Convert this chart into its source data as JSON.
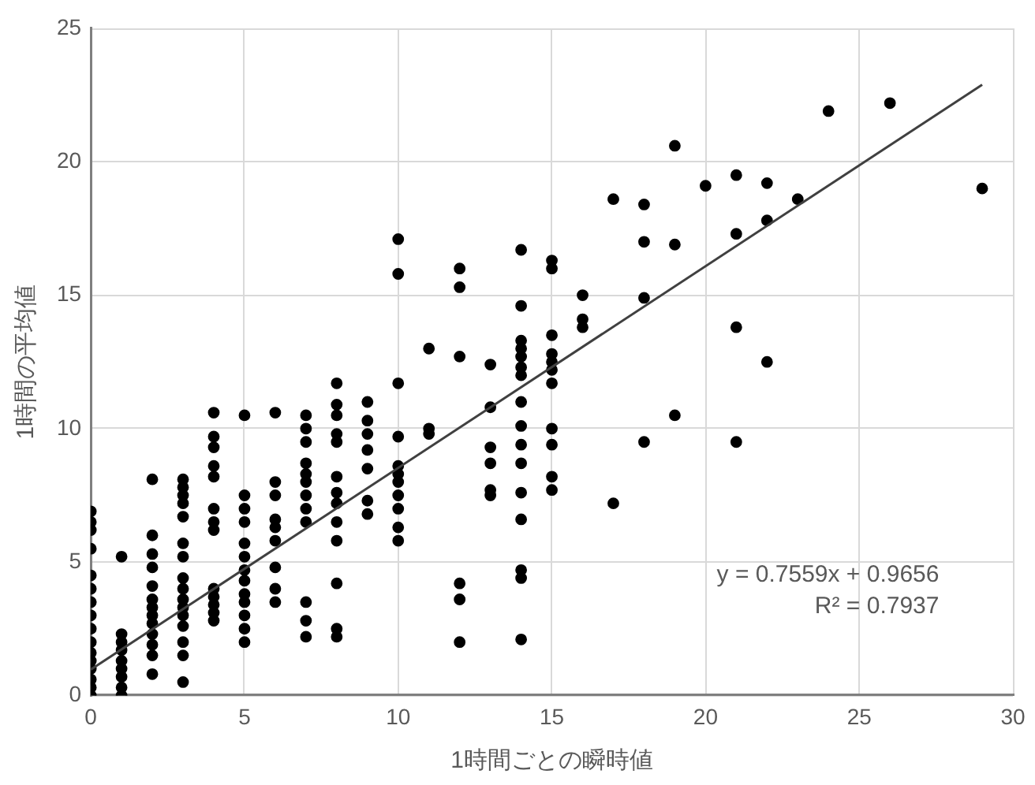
{
  "chart_data": {
    "type": "scatter",
    "xlabel": "1時間ごとの瞬時値",
    "ylabel": "1時間の平均値",
    "xlim": [
      0,
      30
    ],
    "xticks": [
      0,
      5,
      10,
      15,
      20,
      25,
      30
    ],
    "ylim": [
      0,
      25
    ],
    "yticks": [
      0,
      5,
      10,
      15,
      20,
      25
    ],
    "grid": true,
    "legend": false,
    "annotations": [
      "y = 0.7559x + 0.9656",
      "R² = 0.7937"
    ],
    "series": [
      {
        "color": "#000000",
        "marker": "circle",
        "x": [
          0,
          0,
          0,
          0,
          0,
          0,
          0,
          0,
          0,
          0,
          0,
          0,
          0,
          0,
          0,
          0,
          1,
          1,
          1,
          1,
          1,
          1,
          1,
          1,
          1,
          2,
          2,
          2,
          2,
          2,
          2,
          2,
          2,
          2,
          2,
          2,
          2,
          2,
          3,
          3,
          3,
          3,
          3,
          3,
          3,
          3,
          3,
          3,
          3,
          3,
          3,
          3,
          3,
          3,
          4,
          4,
          4,
          4,
          4,
          4,
          4,
          4,
          4,
          4,
          4,
          4,
          4,
          5,
          5,
          5,
          5,
          5,
          5,
          5,
          5,
          5,
          5,
          5,
          5,
          5,
          6,
          6,
          6,
          6,
          6,
          6,
          6,
          6,
          6,
          7,
          7,
          7,
          7,
          7,
          7,
          7,
          7,
          7,
          7,
          7,
          7,
          8,
          8,
          8,
          8,
          8,
          8,
          8,
          8,
          8,
          8,
          8,
          8,
          8,
          9,
          9,
          9,
          9,
          9,
          9,
          9,
          10,
          10,
          10,
          10,
          10,
          10,
          10,
          10,
          10,
          10,
          10,
          11,
          11,
          11,
          12,
          12,
          12,
          12,
          12,
          12,
          13,
          13,
          13,
          13,
          13,
          13,
          14,
          14,
          14,
          14,
          14,
          14,
          14,
          14,
          14,
          14,
          14,
          14,
          14,
          14,
          14,
          14,
          15,
          15,
          15,
          15,
          15,
          15,
          15,
          15,
          15,
          15,
          15,
          16,
          16,
          16,
          17,
          17,
          18,
          18,
          18,
          18,
          19,
          19,
          19,
          20,
          21,
          21,
          21,
          21,
          22,
          22,
          22,
          23,
          24,
          26,
          29
        ],
        "values": [
          0,
          0.3,
          0.6,
          1,
          1.3,
          1.6,
          2,
          2.5,
          3,
          3.5,
          4,
          4.5,
          5.5,
          6.2,
          6.5,
          6.9,
          0,
          0.3,
          0.7,
          1,
          1.3,
          1.7,
          2,
          2.3,
          5.2,
          0.8,
          1.5,
          1.9,
          2.3,
          2.7,
          3,
          3.3,
          3.6,
          4.1,
          4.8,
          5.3,
          6,
          8.1,
          0.5,
          1.5,
          2,
          2.6,
          3,
          3.3,
          3.6,
          4,
          4.4,
          5.2,
          5.7,
          6.7,
          7.2,
          7.5,
          7.8,
          8.1,
          2.8,
          3.1,
          3.4,
          3.7,
          4,
          6.2,
          6.5,
          7,
          8.2,
          8.6,
          9.3,
          9.7,
          10.6,
          2,
          2.5,
          3,
          3.5,
          3.8,
          4.3,
          4.7,
          5.2,
          5.7,
          6.5,
          7,
          7.5,
          10.5,
          3.5,
          4,
          4.8,
          5.8,
          6.3,
          6.6,
          7.5,
          8,
          10.6,
          2.2,
          2.8,
          3.5,
          6.5,
          7,
          7.5,
          8,
          8.3,
          8.7,
          9.5,
          10,
          10.5,
          2.2,
          2.5,
          4.2,
          5.8,
          6.5,
          7.2,
          7.6,
          8.2,
          9.5,
          9.8,
          10.5,
          10.9,
          11.7,
          6.8,
          7.3,
          8.5,
          9.2,
          9.8,
          10.3,
          11,
          5.8,
          6.3,
          7,
          7.5,
          8,
          8.3,
          8.6,
          9.7,
          11.7,
          15.8,
          17.1,
          9.8,
          10,
          13,
          2,
          3.6,
          4.2,
          12.7,
          15.3,
          16,
          7.5,
          7.7,
          8.7,
          9.3,
          10.8,
          12.4,
          2.1,
          4.4,
          4.7,
          6.6,
          7.6,
          8.7,
          9.4,
          10.1,
          11,
          12,
          12.3,
          12.7,
          13,
          13.3,
          14.6,
          16.7,
          7.7,
          8.2,
          9.4,
          10,
          11.7,
          12.2,
          12.5,
          12.8,
          13.5,
          16,
          16.3,
          13.8,
          14.1,
          15,
          7.2,
          18.6,
          9.5,
          14.9,
          17,
          18.4,
          10.5,
          16.9,
          20.6,
          19.1,
          9.5,
          13.8,
          17.3,
          19.5,
          12.5,
          17.8,
          19.2,
          18.6,
          21.9,
          22.2,
          19
        ]
      },
      {
        "type": "line",
        "marker": "none",
        "color": "#404040",
        "x": [
          0,
          29
        ],
        "values": [
          0.97,
          22.89
        ]
      }
    ]
  }
}
